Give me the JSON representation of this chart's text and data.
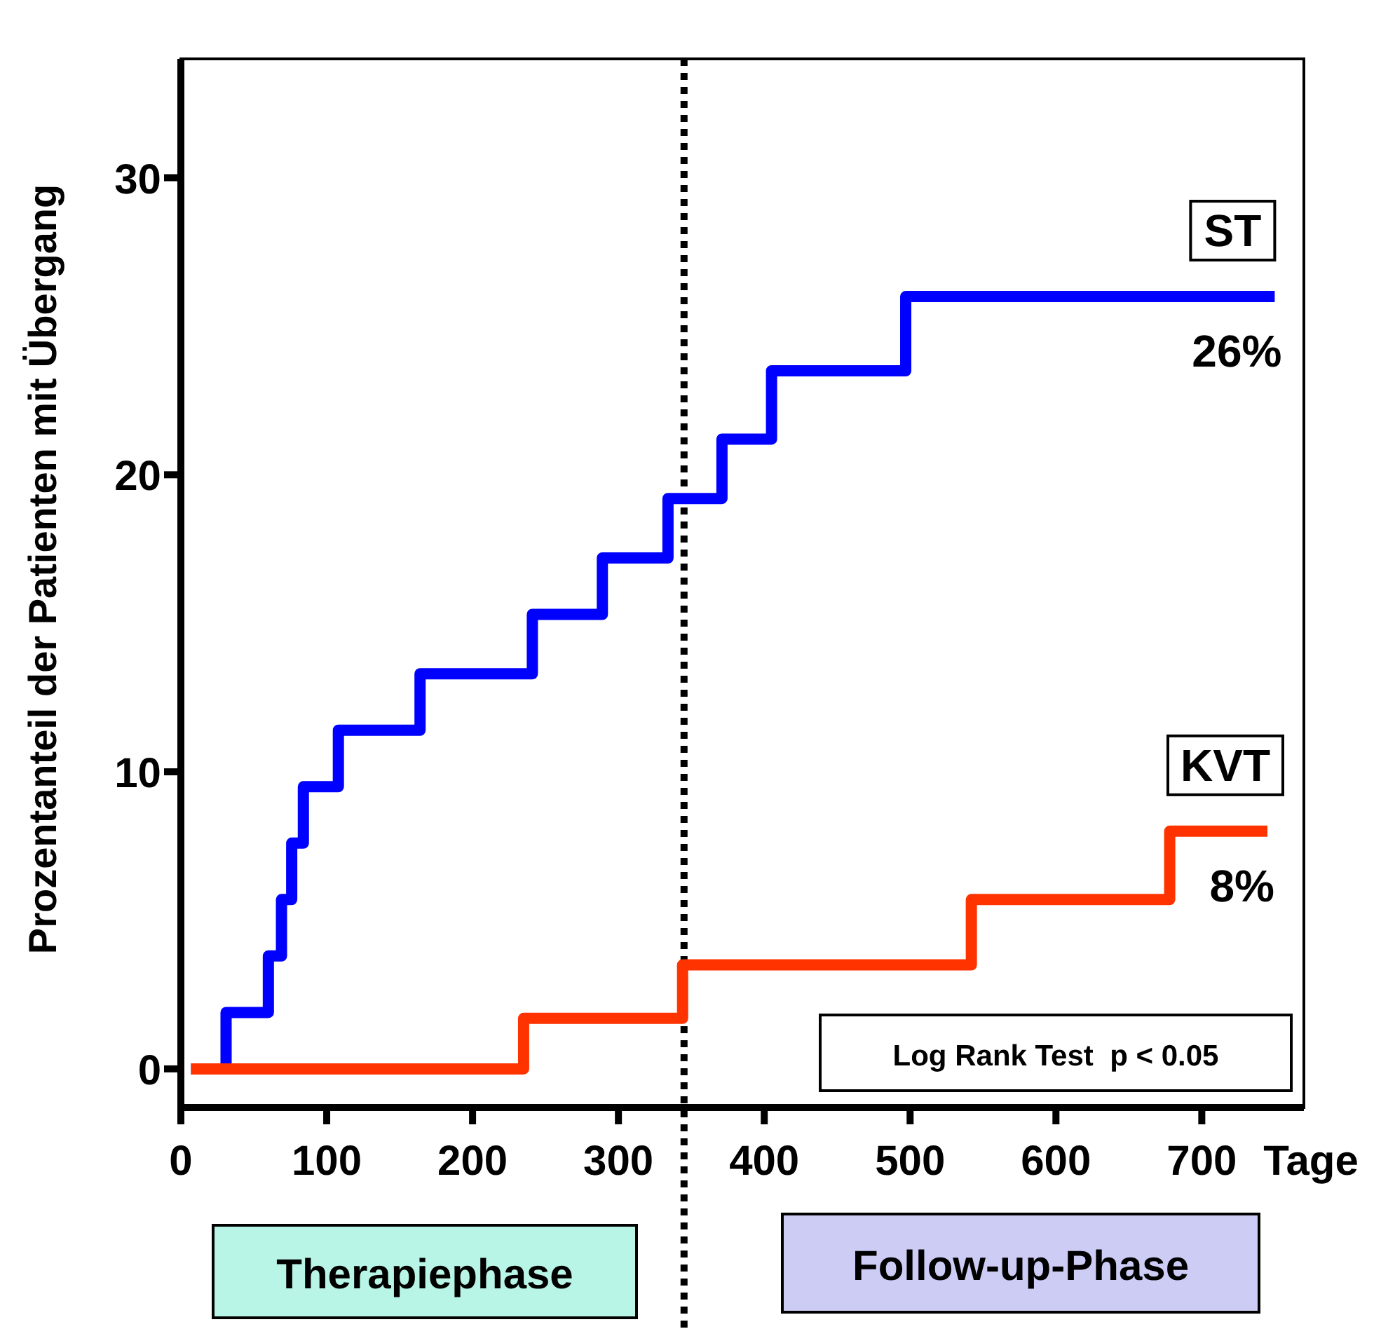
{
  "chart_data": {
    "type": "step",
    "ylabel": "Prozentanteil der Patienten mit Übergang",
    "xlabel": "Tage",
    "xlim": [
      0,
      770
    ],
    "xticks": [
      0,
      100,
      200,
      300,
      400,
      500,
      600,
      700
    ],
    "ylim": [
      -1.3,
      34
    ],
    "yticks": [
      0,
      10,
      20,
      30
    ],
    "grid": false,
    "marker": "none",
    "line_style": "solid",
    "series": [
      {
        "name": "ST",
        "color": "#0000ff",
        "x": [
          7,
          31,
          60,
          69,
          76,
          84,
          108,
          164,
          241,
          289,
          334,
          371,
          405,
          497,
          750
        ],
        "values": [
          0,
          1.9,
          3.8,
          5.7,
          7.6,
          9.5,
          11.4,
          13.3,
          15.3,
          17.2,
          19.2,
          21.2,
          23.5,
          26,
          26
        ]
      },
      {
        "name": "KVT",
        "color": "#ff3300",
        "x": [
          7,
          235,
          344,
          542,
          678,
          745
        ],
        "values": [
          0,
          1.7,
          3.5,
          5.7,
          8,
          8
        ]
      }
    ],
    "ref_lines": [
      {
        "axis": "x",
        "value": 345,
        "line_style": "dotted",
        "color": "#000000"
      }
    ],
    "annotations": [
      {
        "text": "26%",
        "x": 750,
        "y": 26
      },
      {
        "text": "8%",
        "x": 745,
        "y": 8
      },
      "Log Rank Test  p < 0.05",
      "Therapiephase",
      "Follow-up-Phase"
    ]
  }
}
